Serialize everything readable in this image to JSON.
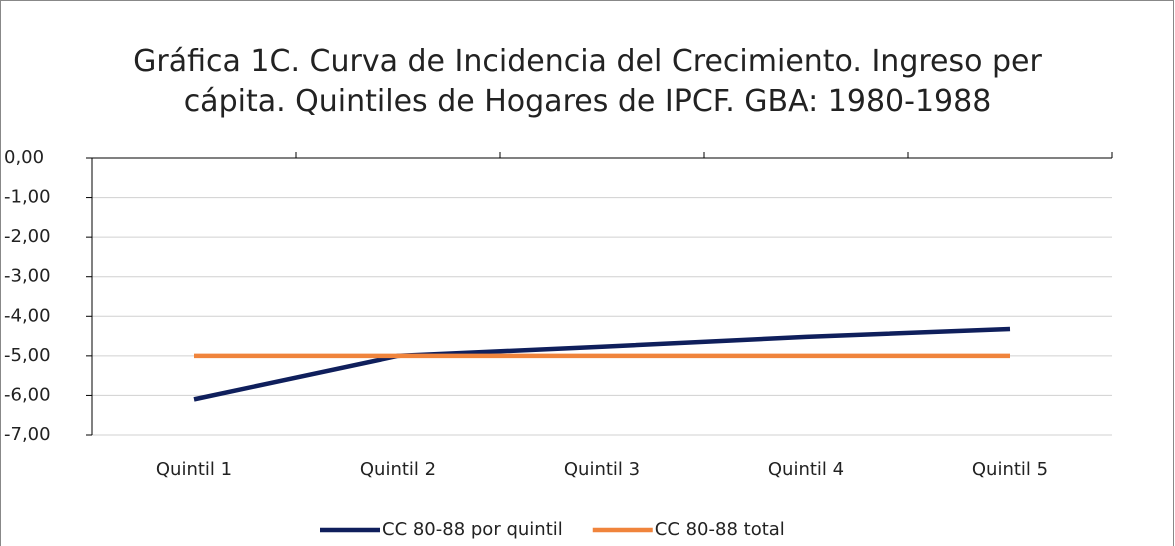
{
  "chart_data": {
    "type": "line",
    "title": "Gráfica 1C. Curva de Incidencia del Crecimiento. Ingreso per cápita. Quintiles de Hogares de IPCF. GBA: 1980-1988",
    "categories": [
      "Quintil 1",
      "Quintil 2",
      "Quintil 3",
      "Quintil 4",
      "Quintil 5"
    ],
    "series": [
      {
        "name": "CC 80-88 por quintil",
        "color": "#0f1f5c",
        "values": [
          -6.1,
          -5.0,
          -4.77,
          -4.52,
          -4.32
        ]
      },
      {
        "name": "CC 80-88 total",
        "color": "#f0843c",
        "values": [
          -5.0,
          -5.0,
          -5.0,
          -5.0,
          -5.0
        ]
      }
    ],
    "ylim": [
      -7,
      0
    ],
    "yticks": [
      {
        "value": 0,
        "label": "0,00"
      },
      {
        "value": -1,
        "label": "-1,00"
      },
      {
        "value": -2,
        "label": "-2,00"
      },
      {
        "value": -3,
        "label": "-3,00"
      },
      {
        "value": -4,
        "label": "-4,00"
      },
      {
        "value": -5,
        "label": "-5,00"
      },
      {
        "value": -6,
        "label": "-6,00"
      },
      {
        "value": -7,
        "label": "-7,00"
      }
    ],
    "grid": true,
    "legend": "bottom"
  }
}
